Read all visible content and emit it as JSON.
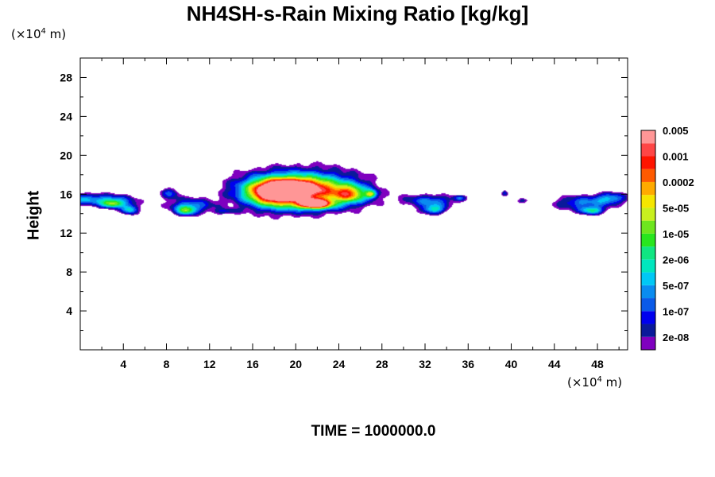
{
  "chart_data": {
    "type": "heatmap",
    "title": "NH4SH-s-Rain Mixing Ratio [kg/kg]",
    "xlabel": "",
    "ylabel": "Height",
    "x_unit": {
      "prefix": "(×10",
      "exp": "4",
      "suffix": " m)"
    },
    "y_unit": {
      "prefix": "(×10",
      "exp": "4",
      "suffix": " m)"
    },
    "xlim": [
      0,
      50.8
    ],
    "ylim": [
      0,
      30
    ],
    "x_ticks": [
      4,
      8,
      12,
      16,
      20,
      24,
      28,
      32,
      36,
      40,
      44,
      48
    ],
    "y_ticks": [
      4,
      8,
      12,
      16,
      20,
      24,
      28
    ],
    "legend_position": "right",
    "colorbar": {
      "colors": [
        "#7f00bf",
        "#0a1a9a",
        "#0000ee",
        "#0a5ae8",
        "#0a8cf0",
        "#00c8f5",
        "#00e6be",
        "#10e682",
        "#28e61e",
        "#6ee61e",
        "#c8f01e",
        "#f5e600",
        "#ffaa00",
        "#ff5a00",
        "#ff1400",
        "#ff4646",
        "#ff9696"
      ],
      "labels": [
        "2e-08",
        "1e-07",
        "5e-07",
        "2e-06",
        "1e-05",
        "5e-05",
        "0.0002",
        "0.001",
        "0.005"
      ]
    },
    "cells": [
      {
        "x": 0.1,
        "y": 15.5,
        "sx": 2.2,
        "sy": 0.6,
        "v": 0.55
      },
      {
        "x": 3.2,
        "y": 15.3,
        "sx": 2.2,
        "sy": 0.7,
        "v": 0.55
      },
      {
        "x": 3.0,
        "y": 15.0,
        "sx": 1.0,
        "sy": 0.4,
        "v": 0.65
      },
      {
        "x": 4.6,
        "y": 14.4,
        "sx": 0.8,
        "sy": 0.5,
        "v": 0.7
      },
      {
        "x": 8.3,
        "y": 16.1,
        "sx": 0.9,
        "sy": 0.6,
        "v": 0.45
      },
      {
        "x": 10.2,
        "y": 14.8,
        "sx": 2.2,
        "sy": 0.8,
        "v": 0.55
      },
      {
        "x": 9.8,
        "y": 14.3,
        "sx": 0.9,
        "sy": 0.5,
        "v": 0.7
      },
      {
        "x": 13.5,
        "y": 14.2,
        "sx": 1.2,
        "sy": 0.3,
        "v": 0.3
      },
      {
        "x": 20.6,
        "y": 16.4,
        "sx": 6.0,
        "sy": 2.2,
        "v": 0.9
      },
      {
        "x": 19.8,
        "y": 16.6,
        "sx": 3.5,
        "sy": 1.1,
        "v": 1.25
      },
      {
        "x": 18.0,
        "y": 16.0,
        "sx": 2.4,
        "sy": 1.3,
        "v": 1.05
      },
      {
        "x": 21.8,
        "y": 15.0,
        "sx": 1.6,
        "sy": 0.5,
        "v": 1.55
      },
      {
        "x": 25.0,
        "y": 16.0,
        "sx": 1.6,
        "sy": 0.9,
        "v": 0.9
      },
      {
        "x": 27.0,
        "y": 16.0,
        "sx": 0.5,
        "sy": 0.4,
        "v": 0.8
      },
      {
        "x": 32.5,
        "y": 15.3,
        "sx": 2.5,
        "sy": 0.7,
        "v": 0.55
      },
      {
        "x": 32.8,
        "y": 14.4,
        "sx": 1.1,
        "sy": 0.5,
        "v": 0.7
      },
      {
        "x": 35.2,
        "y": 15.6,
        "sx": 0.6,
        "sy": 0.3,
        "v": 0.4
      },
      {
        "x": 39.4,
        "y": 16.1,
        "sx": 0.3,
        "sy": 0.3,
        "v": 0.4
      },
      {
        "x": 41.0,
        "y": 15.3,
        "sx": 0.6,
        "sy": 0.3,
        "v": 0.3
      },
      {
        "x": 46.6,
        "y": 15.1,
        "sx": 2.8,
        "sy": 0.8,
        "v": 0.55
      },
      {
        "x": 49.3,
        "y": 15.6,
        "sx": 1.5,
        "sy": 0.6,
        "v": 0.55
      },
      {
        "x": 47.5,
        "y": 14.3,
        "sx": 1.1,
        "sy": 0.4,
        "v": 0.7
      }
    ]
  },
  "footer": {
    "time_label": "TIME = 1000000.0"
  }
}
